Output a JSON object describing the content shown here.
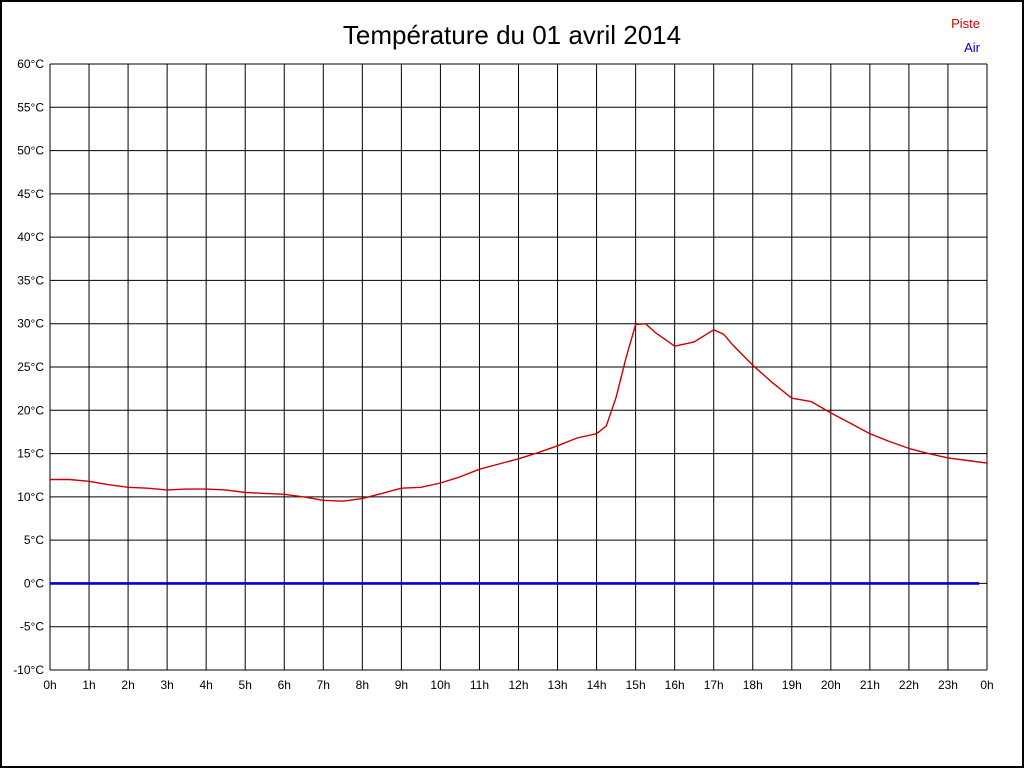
{
  "page": {
    "background": "#ffffff",
    "border_color": "#000000"
  },
  "legend": {
    "items": [
      {
        "label": "Piste",
        "color": "#cc0000"
      },
      {
        "label": "Air",
        "color": "#0000cc"
      }
    ]
  },
  "chart_data": {
    "type": "line",
    "title": "Température du 01 avril 2014",
    "xlabel": "",
    "ylabel": "",
    "x_ticks": [
      "0h",
      "1h",
      "2h",
      "3h",
      "4h",
      "5h",
      "6h",
      "7h",
      "8h",
      "9h",
      "10h",
      "11h",
      "12h",
      "13h",
      "14h",
      "15h",
      "16h",
      "17h",
      "18h",
      "19h",
      "20h",
      "21h",
      "22h",
      "23h",
      "0h"
    ],
    "ylim": [
      -10,
      60
    ],
    "y_tick_step": 5,
    "y_tick_suffix": "°C",
    "grid": true,
    "legend_position": "top-right",
    "series": [
      {
        "name": "Piste",
        "color": "#cc0000",
        "width": 1.4,
        "x": [
          0,
          0.5,
          1,
          1.5,
          2,
          2.5,
          3,
          3.5,
          4,
          4.5,
          5,
          5.5,
          6,
          6.5,
          7,
          7.5,
          8,
          8.5,
          9,
          9.5,
          10,
          10.5,
          11,
          11.5,
          12,
          12.5,
          13,
          13.5,
          14,
          14.25,
          14.5,
          14.75,
          15,
          15.25,
          15.5,
          16,
          16.5,
          17,
          17.25,
          17.5,
          18,
          18.5,
          19,
          19.5,
          20,
          20.5,
          21,
          21.5,
          22,
          22.5,
          23,
          23.5,
          24
        ],
        "values": [
          12,
          12,
          11.8,
          11.4,
          11.1,
          11,
          10.8,
          10.9,
          10.9,
          10.8,
          10.5,
          10.4,
          10.3,
          10,
          9.6,
          9.5,
          9.8,
          10.4,
          11,
          11.1,
          11.6,
          12.3,
          13.2,
          13.8,
          14.4,
          15.1,
          15.9,
          16.8,
          17.3,
          18.2,
          21.5,
          26,
          29.9,
          30,
          29,
          27.4,
          27.9,
          29.3,
          28.8,
          27.5,
          25.2,
          23.2,
          21.4,
          21,
          19.7,
          18.5,
          17.3,
          16.4,
          15.6,
          15,
          14.5,
          14.2,
          13.9
        ]
      },
      {
        "name": "Air",
        "color": "#0000cc",
        "width": 2.6,
        "x": [
          0,
          23.8
        ],
        "values": [
          0,
          0
        ]
      }
    ]
  }
}
